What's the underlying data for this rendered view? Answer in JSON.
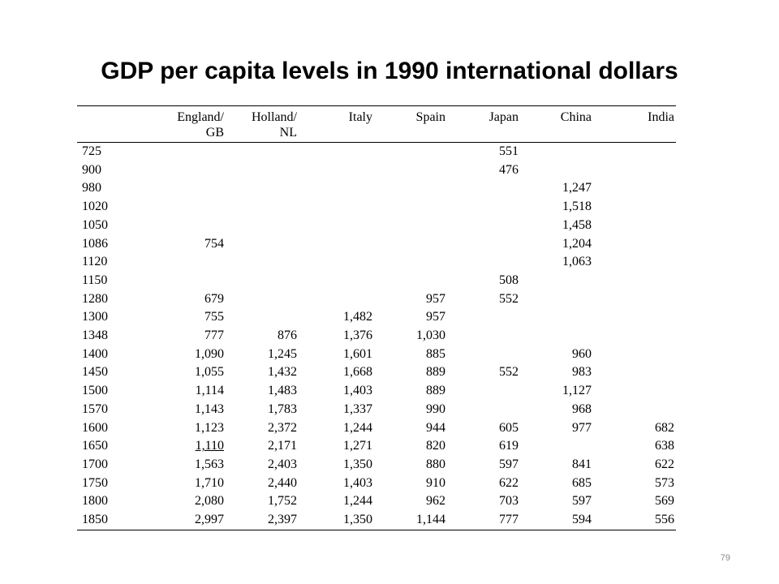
{
  "title": "GDP per capita levels in 1990 international dollars",
  "table": {
    "headers": [
      {
        "line1": "",
        "line2": ""
      },
      {
        "line1": "England/",
        "line2": "GB"
      },
      {
        "line1": "Holland/",
        "line2": "NL"
      },
      {
        "line1": "Italy",
        "line2": ""
      },
      {
        "line1": "Spain",
        "line2": ""
      },
      {
        "line1": "Japan",
        "line2": ""
      },
      {
        "line1": "China",
        "line2": ""
      },
      {
        "line1": "India",
        "line2": ""
      }
    ],
    "rows": [
      [
        "725",
        "",
        "",
        "",
        "",
        "551",
        "",
        ""
      ],
      [
        "900",
        "",
        "",
        "",
        "",
        "476",
        "",
        ""
      ],
      [
        "980",
        "",
        "",
        "",
        "",
        "",
        "1,247",
        ""
      ],
      [
        "1020",
        "",
        "",
        "",
        "",
        "",
        "1,518",
        ""
      ],
      [
        "1050",
        "",
        "",
        "",
        "",
        "",
        "1,458",
        ""
      ],
      [
        "1086",
        "754",
        "",
        "",
        "",
        "",
        "1,204",
        ""
      ],
      [
        "1120",
        "",
        "",
        "",
        "",
        "",
        "1,063",
        ""
      ],
      [
        "1150",
        "",
        "",
        "",
        "",
        "508",
        "",
        ""
      ],
      [
        "1280",
        "679",
        "",
        "",
        "957",
        "552",
        "",
        ""
      ],
      [
        "1300",
        "755",
        "",
        "1,482",
        "957",
        "",
        "",
        ""
      ],
      [
        "1348",
        "777",
        "876",
        "1,376",
        "1,030",
        "",
        "",
        ""
      ],
      [
        "1400",
        "1,090",
        "1,245",
        "1,601",
        "885",
        "",
        "960",
        ""
      ],
      [
        "1450",
        "1,055",
        "1,432",
        "1,668",
        "889",
        "552",
        "983",
        ""
      ],
      [
        "1500",
        "1,114",
        "1,483",
        "1,403",
        "889",
        "",
        "1,127",
        ""
      ],
      [
        "1570",
        "1,143",
        "1,783",
        "1,337",
        "990",
        "",
        "968",
        ""
      ],
      [
        "1600",
        "1,123",
        "2,372",
        "1,244",
        "944",
        "605",
        "977",
        "682"
      ],
      [
        "1650",
        "1,110",
        "2,171",
        "1,271",
        "820",
        "619",
        "",
        "638"
      ],
      [
        "1700",
        "1,563",
        "2,403",
        "1,350",
        "880",
        "597",
        "841",
        "622"
      ],
      [
        "1750",
        "1,710",
        "2,440",
        "1,403",
        "910",
        "622",
        "685",
        "573"
      ],
      [
        "1800",
        "2,080",
        "1,752",
        "1,244",
        "962",
        "703",
        "597",
        "569"
      ],
      [
        "1850",
        "2,997",
        "2,397",
        "1,350",
        "1,144",
        "777",
        "594",
        "556"
      ]
    ]
  },
  "slide_number": "79"
}
